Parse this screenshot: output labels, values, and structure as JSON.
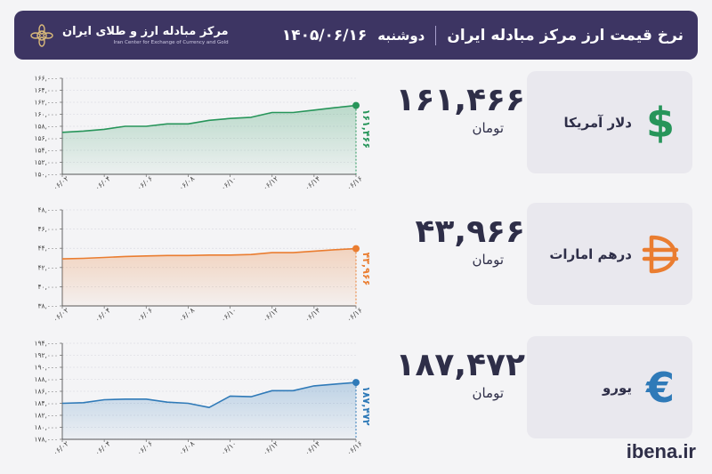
{
  "header": {
    "title": "نرخ قیمت ارز مرکز مبادله ایران",
    "day": "دوشنبه",
    "date": "۱۴۰۵/۰۶/۱۶",
    "logo_fa": "مرکز مبادله ارز و طلای ایران",
    "logo_en": "Iran Center for Exchange of Currency and Gold",
    "bg_color": "#3d3563"
  },
  "currencies": [
    {
      "name": "دلار آمریکا",
      "price": "۱۶۱,۴۶۶",
      "unit": "تومان",
      "symbol": "$",
      "color": "#27955a"
    },
    {
      "name": "درهم امارات",
      "price": "۴۳,۹۶۶",
      "unit": "تومان",
      "symbol": "₿",
      "color": "#ea7d30"
    },
    {
      "name": "یورو",
      "price": "۱۸۷,۴۷۲",
      "unit": "تومان",
      "symbol": "€",
      "color": "#2f7ab8"
    }
  ],
  "footer": {
    "brand": "ibena.ir"
  },
  "chart_data": [
    {
      "type": "area",
      "series_color": "#27955a",
      "x": [
        "۰۶/۰۲",
        "۰۶/۰۳",
        "۰۶/۰۴",
        "۰۶/۰۵",
        "۰۶/۰۶",
        "۰۶/۰۷",
        "۰۶/۰۸",
        "۰۶/۰۹",
        "۰۶/۱۰",
        "۰۶/۱۱",
        "۰۶/۱۲",
        "۰۶/۱۳",
        "۰۶/۱۴",
        "۰۶/۱۵",
        "۰۶/۱۶"
      ],
      "x_tick_labels": [
        "۰۶/۰۲",
        "۰۶/۰۴",
        "۰۶/۰۶",
        "۰۶/۰۸",
        "۰۶/۱۰",
        "۰۶/۱۲",
        "۰۶/۱۴",
        "۰۶/۱۶"
      ],
      "values": [
        157000,
        157200,
        157500,
        158000,
        158000,
        158400,
        158400,
        159000,
        159300,
        159500,
        160300,
        160300,
        160700,
        161100,
        161466
      ],
      "y_ticks": [
        "۱۵۰,۰۰۰",
        "۱۵۲,۰۰۰",
        "۱۵۴,۰۰۰",
        "۱۵۶,۰۰۰",
        "۱۵۸,۰۰۰",
        "۱۶۰,۰۰۰",
        "۱۶۲,۰۰۰",
        "۱۶۴,۰۰۰",
        "۱۶۶,۰۰۰"
      ],
      "ylim": [
        150000,
        166000
      ],
      "end_label": "۱۶۱,۴۶۶",
      "grid": true
    },
    {
      "type": "area",
      "series_color": "#ea7d30",
      "x": [
        "۰۶/۰۲",
        "۰۶/۰۳",
        "۰۶/۰۴",
        "۰۶/۰۵",
        "۰۶/۰۶",
        "۰۶/۰۷",
        "۰۶/۰۸",
        "۰۶/۰۹",
        "۰۶/۱۰",
        "۰۶/۱۱",
        "۰۶/۱۲",
        "۰۶/۱۳",
        "۰۶/۱۴",
        "۰۶/۱۵",
        "۰۶/۱۶"
      ],
      "x_tick_labels": [
        "۰۶/۰۲",
        "۰۶/۰۴",
        "۰۶/۰۶",
        "۰۶/۰۸",
        "۰۶/۱۰",
        "۰۶/۱۲",
        "۰۶/۱۴",
        "۰۶/۱۶"
      ],
      "values": [
        42900,
        42950,
        43050,
        43150,
        43200,
        43250,
        43250,
        43300,
        43300,
        43350,
        43550,
        43550,
        43700,
        43850,
        43966
      ],
      "y_ticks": [
        "۳۸,۰۰۰",
        "۴۰,۰۰۰",
        "۴۲,۰۰۰",
        "۴۴,۰۰۰",
        "۴۶,۰۰۰",
        "۴۸,۰۰۰"
      ],
      "ylim": [
        38000,
        48000
      ],
      "end_label": "۴۳,۹۶۶",
      "grid": true
    },
    {
      "type": "area",
      "series_color": "#2f7ab8",
      "x": [
        "۰۶/۰۲",
        "۰۶/۰۳",
        "۰۶/۰۴",
        "۰۶/۰۵",
        "۰۶/۰۶",
        "۰۶/۰۷",
        "۰۶/۰۸",
        "۰۶/۰۹",
        "۰۶/۱۰",
        "۰۶/۱۱",
        "۰۶/۱۲",
        "۰۶/۱۳",
        "۰۶/۱۴",
        "۰۶/۱۵",
        "۰۶/۱۶"
      ],
      "x_tick_labels": [
        "۰۶/۰۲",
        "۰۶/۰۴",
        "۰۶/۰۶",
        "۰۶/۰۸",
        "۰۶/۱۰",
        "۰۶/۱۲",
        "۰۶/۱۴",
        "۰۶/۱۶"
      ],
      "values": [
        184000,
        184100,
        184600,
        184700,
        184700,
        184200,
        184000,
        183300,
        185200,
        185100,
        186100,
        186100,
        186900,
        187200,
        187472
      ],
      "y_ticks": [
        "۱۷۸,۰۰۰",
        "۱۸۰,۰۰۰",
        "۱۸۲,۰۰۰",
        "۱۸۴,۰۰۰",
        "۱۸۶,۰۰۰",
        "۱۸۸,۰۰۰",
        "۱۹۰,۰۰۰",
        "۱۹۲,۰۰۰",
        "۱۹۴,۰۰۰"
      ],
      "ylim": [
        178000,
        194000
      ],
      "end_label": "۱۸۷,۴۷۲",
      "grid": true
    }
  ]
}
